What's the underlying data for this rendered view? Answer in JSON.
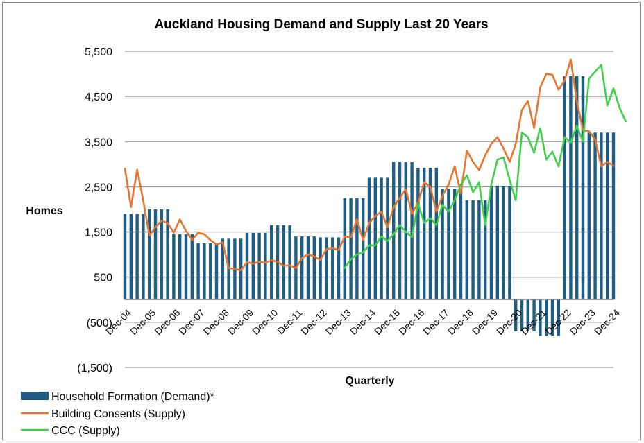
{
  "chart_data": {
    "type": "bar+line",
    "title": "Auckland Housing Demand and Supply Last 20 Years",
    "ylabel": "Homes",
    "xlabel": "Quarterly",
    "ylim": [
      -1500,
      5500
    ],
    "yticks": [
      -1500,
      -500,
      500,
      1500,
      2500,
      3500,
      4500,
      5500
    ],
    "ytick_labels": [
      "(1,500)",
      "(500)",
      "500",
      "1,500",
      "2,500",
      "3,500",
      "4,500",
      "5,500"
    ],
    "x_tick_labels": [
      "Dec-04",
      "Dec-05",
      "Dec-06",
      "Dec-07",
      "Dec-08",
      "Dec-09",
      "Dec-10",
      "Dec-11",
      "Dec-12",
      "Dec-13",
      "Dec-14",
      "Dec-15",
      "Dec-16",
      "Dec-17",
      "Dec-18",
      "Dec-19",
      "Dec-20",
      "Dec-21",
      "Dec-22",
      "Dec-23",
      "Dec-24"
    ],
    "grid": true,
    "legend_position": "bottom-left",
    "series": [
      {
        "name": "Household Formation (Demand)*",
        "type": "bar",
        "color": "#1f5e82",
        "values": [
          1900,
          1900,
          1900,
          1900,
          2000,
          2000,
          2000,
          2000,
          1450,
          1450,
          1450,
          1450,
          1250,
          1250,
          1250,
          1250,
          1350,
          1350,
          1350,
          1350,
          1480,
          1480,
          1480,
          1480,
          1650,
          1650,
          1650,
          1650,
          1400,
          1400,
          1400,
          1400,
          1380,
          1380,
          1380,
          1380,
          2250,
          2250,
          2250,
          2250,
          2700,
          2700,
          2700,
          2700,
          3050,
          3050,
          3050,
          3050,
          2920,
          2920,
          2920,
          2920,
          2460,
          2460,
          2460,
          2460,
          2200,
          2200,
          2200,
          2200,
          2520,
          2520,
          2520,
          2520,
          -700,
          -700,
          -700,
          -700,
          -800,
          -800,
          -800,
          -800,
          4950,
          4950,
          4950,
          4950,
          3700,
          3700,
          3700,
          3700,
          3700
        ]
      },
      {
        "name": "Building Consents (Supply)",
        "type": "line",
        "color": "#e8742e",
        "values": [
          2900,
          2050,
          2880,
          2200,
          1420,
          1600,
          1750,
          1700,
          1480,
          1780,
          1520,
          1320,
          1480,
          1450,
          1320,
          1220,
          1270,
          700,
          680,
          650,
          830,
          800,
          840,
          820,
          870,
          840,
          750,
          760,
          700,
          930,
          1000,
          960,
          880,
          1120,
          1140,
          1100,
          1400,
          1380,
          1780,
          1320,
          1700,
          1850,
          1950,
          1600,
          2050,
          2250,
          2450,
          1900,
          2150,
          2600,
          2500,
          1950,
          2300,
          2550,
          2950,
          2350,
          3300,
          3050,
          2870,
          3200,
          3450,
          3600,
          3350,
          3050,
          3450,
          4200,
          4400,
          3800,
          4700,
          5000,
          4980,
          4650,
          4850,
          5320,
          4400,
          3750,
          3730,
          3550,
          2950,
          3050,
          2960
        ]
      },
      {
        "name": "CCC (Supply)",
        "type": "line",
        "color": "#3fd04a",
        "x_start_index": 36,
        "values": [
          700,
          900,
          1000,
          1050,
          1200,
          1200,
          1400,
          1300,
          1450,
          1650,
          1500,
          1380,
          2130,
          1700,
          1800,
          1650,
          2100,
          1950,
          2200,
          2550,
          2750,
          2380,
          2600,
          1650,
          2550,
          3100,
          3150,
          2650,
          2200,
          3700,
          3600,
          3250,
          3800,
          3100,
          3280,
          2950,
          3600,
          3480,
          3850,
          3500,
          4900,
          5050,
          5200,
          4300,
          4680,
          4250,
          3950
        ]
      }
    ]
  }
}
